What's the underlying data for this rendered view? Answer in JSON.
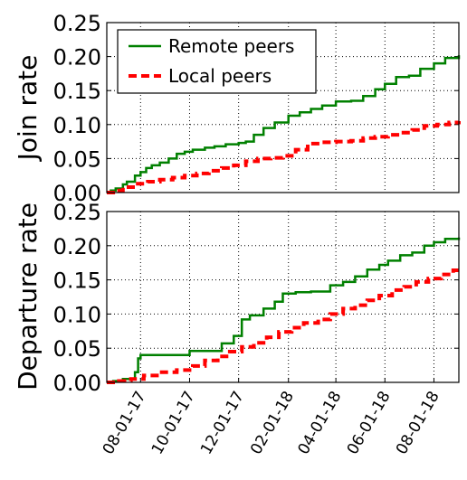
{
  "colors": {
    "remote": "#008000",
    "local": "#ff0000"
  },
  "chart_data": [
    {
      "type": "line",
      "ylabel": "Join rate",
      "ylim": [
        0,
        0.25
      ],
      "yticks": [
        "0.00",
        "0.05",
        "0.10",
        "0.15",
        "0.20",
        "0.25"
      ],
      "ytick_values": [
        0,
        0.05,
        0.1,
        0.15,
        0.2,
        0.25
      ],
      "xlim": [
        "2017-06-20",
        "2018-09-01"
      ],
      "xticks": [],
      "grid": true,
      "legend": {
        "placement": "top-left",
        "entries": [
          "Remote peers",
          "Local peers"
        ]
      },
      "series": [
        {
          "name": "Remote peers",
          "style": "solid",
          "x": [
            "2017-06-20",
            "2017-06-25",
            "2017-07-01",
            "2017-07-10",
            "2017-07-15",
            "2017-07-25",
            "2017-08-01",
            "2017-08-08",
            "2017-08-15",
            "2017-08-25",
            "2017-09-05",
            "2017-09-15",
            "2017-09-25",
            "2017-10-05",
            "2017-10-20",
            "2017-11-01",
            "2017-11-15",
            "2017-12-01",
            "2017-12-10",
            "2017-12-20",
            "2018-01-01",
            "2018-01-15",
            "2018-02-01",
            "2018-02-15",
            "2018-03-01",
            "2018-03-15",
            "2018-04-01",
            "2018-04-20",
            "2018-05-05",
            "2018-05-20",
            "2018-06-01",
            "2018-06-15",
            "2018-07-01",
            "2018-07-15",
            "2018-08-01",
            "2018-08-15",
            "2018-09-01"
          ],
          "y": [
            0.0,
            0.003,
            0.006,
            0.012,
            0.016,
            0.025,
            0.03,
            0.036,
            0.04,
            0.044,
            0.05,
            0.057,
            0.06,
            0.063,
            0.066,
            0.068,
            0.071,
            0.073,
            0.075,
            0.085,
            0.095,
            0.103,
            0.113,
            0.118,
            0.123,
            0.128,
            0.134,
            0.135,
            0.142,
            0.152,
            0.16,
            0.17,
            0.172,
            0.182,
            0.19,
            0.198,
            0.202
          ]
        },
        {
          "name": "Local peers",
          "style": "dashed",
          "x": [
            "2017-06-20",
            "2017-06-28",
            "2017-07-10",
            "2017-07-25",
            "2017-08-10",
            "2017-08-25",
            "2017-09-10",
            "2017-09-25",
            "2017-10-10",
            "2017-10-25",
            "2017-11-10",
            "2017-11-25",
            "2017-12-10",
            "2017-12-25",
            "2018-01-10",
            "2018-01-25",
            "2018-02-10",
            "2018-02-25",
            "2018-03-15",
            "2018-04-01",
            "2018-04-20",
            "2018-05-05",
            "2018-05-20",
            "2018-06-05",
            "2018-06-20",
            "2018-07-05",
            "2018-07-20",
            "2018-08-05",
            "2018-08-20",
            "2018-09-01"
          ],
          "y": [
            0.0,
            0.003,
            0.008,
            0.013,
            0.016,
            0.019,
            0.022,
            0.025,
            0.028,
            0.032,
            0.036,
            0.04,
            0.046,
            0.05,
            0.051,
            0.054,
            0.063,
            0.072,
            0.074,
            0.075,
            0.076,
            0.08,
            0.082,
            0.085,
            0.088,
            0.092,
            0.098,
            0.1,
            0.103,
            0.105
          ]
        }
      ]
    },
    {
      "type": "line",
      "ylabel": "Departure rate",
      "ylim": [
        0,
        0.25
      ],
      "yticks": [
        "0.00",
        "0.05",
        "0.10",
        "0.15",
        "0.20",
        "0.25"
      ],
      "ytick_values": [
        0,
        0.05,
        0.1,
        0.15,
        0.2,
        0.25
      ],
      "xlim": [
        "2017-06-20",
        "2018-09-01"
      ],
      "xticks": [
        "08-01-17",
        "10-01-17",
        "12-01-17",
        "02-01-18",
        "04-01-18",
        "06-01-18",
        "08-01-18"
      ],
      "xtick_values": [
        "2017-08-01",
        "2017-10-01",
        "2017-12-01",
        "2018-02-01",
        "2018-04-01",
        "2018-06-01",
        "2018-08-01"
      ],
      "grid": true,
      "series": [
        {
          "name": "Remote peers",
          "style": "solid",
          "x": [
            "2017-06-20",
            "2017-06-28",
            "2017-07-10",
            "2017-07-25",
            "2017-07-29",
            "2017-08-01",
            "2017-08-25",
            "2017-09-15",
            "2017-10-01",
            "2017-10-20",
            "2017-11-01",
            "2017-11-10",
            "2017-11-25",
            "2017-12-05",
            "2017-12-15",
            "2018-01-01",
            "2018-01-15",
            "2018-01-25",
            "2018-02-10",
            "2018-03-01",
            "2018-03-25",
            "2018-04-10",
            "2018-04-25",
            "2018-05-10",
            "2018-05-25",
            "2018-06-05",
            "2018-06-20",
            "2018-07-05",
            "2018-07-20",
            "2018-08-01",
            "2018-08-15",
            "2018-09-01"
          ],
          "y": [
            0.0,
            0.002,
            0.005,
            0.015,
            0.035,
            0.04,
            0.04,
            0.04,
            0.046,
            0.046,
            0.046,
            0.057,
            0.068,
            0.092,
            0.098,
            0.108,
            0.118,
            0.13,
            0.132,
            0.133,
            0.142,
            0.147,
            0.155,
            0.165,
            0.172,
            0.178,
            0.186,
            0.19,
            0.2,
            0.205,
            0.21,
            0.212
          ]
        },
        {
          "name": "Local peers",
          "style": "dashed",
          "x": [
            "2017-06-20",
            "2017-07-05",
            "2017-07-20",
            "2017-08-05",
            "2017-08-25",
            "2017-09-15",
            "2017-10-05",
            "2017-10-20",
            "2017-11-05",
            "2017-11-20",
            "2017-12-05",
            "2017-12-20",
            "2018-01-05",
            "2018-01-20",
            "2018-02-05",
            "2018-02-20",
            "2018-03-10",
            "2018-03-25",
            "2018-04-10",
            "2018-04-25",
            "2018-05-10",
            "2018-05-25",
            "2018-06-10",
            "2018-06-25",
            "2018-07-10",
            "2018-07-25",
            "2018-08-10",
            "2018-08-25",
            "2018-09-01"
          ],
          "y": [
            0.0,
            0.002,
            0.005,
            0.01,
            0.015,
            0.018,
            0.024,
            0.032,
            0.038,
            0.045,
            0.052,
            0.058,
            0.066,
            0.074,
            0.08,
            0.087,
            0.092,
            0.1,
            0.108,
            0.113,
            0.12,
            0.127,
            0.135,
            0.14,
            0.147,
            0.152,
            0.158,
            0.164,
            0.168
          ]
        }
      ]
    }
  ]
}
